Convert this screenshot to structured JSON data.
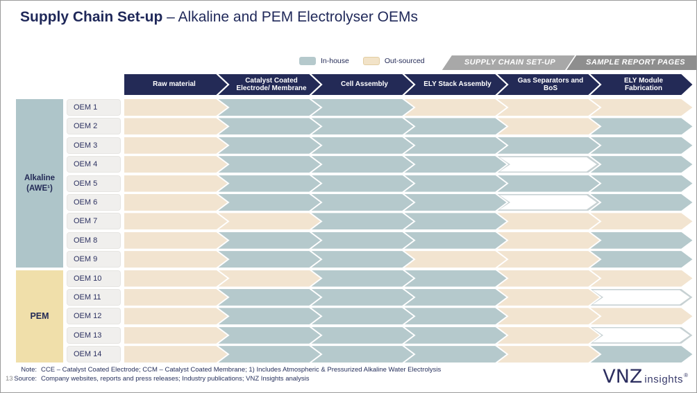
{
  "slide": {
    "title_bold": "Supply Chain Set-up",
    "title_rest": " – Alkaline and PEM Electrolyser OEMs",
    "page_number": "13"
  },
  "legend": {
    "in_house_label": "In-house",
    "out_sourced_label": "Out-sourced"
  },
  "nav_tabs": {
    "tab1": "SUPPLY CHAIN SET-UP",
    "tab2": "SAMPLE REPORT PAGES"
  },
  "colors": {
    "in_house": "#b5c9cc",
    "out_sourced": "#f2e4d0",
    "blank": "#ffffff",
    "blank_border": "#c7d1d3",
    "header_navy": "#232a56",
    "alkaline_block": "#aec5c9",
    "pem_block": "#f0dfaa",
    "tab_light": "#a8a8a8",
    "tab_dark": "#8e8e8e"
  },
  "chart_data": {
    "type": "table",
    "legend": [
      "In-house",
      "Out-sourced"
    ],
    "columns": [
      "Raw material",
      "Catalyst Coated Electrode/ Membrane",
      "Cell Assembly",
      "ELY Stack Assembly",
      "Gas Separators and BoS",
      "ELY Module Fabrication"
    ],
    "groups": [
      {
        "type": "alkaline",
        "label_lines": [
          "Alkaline",
          "(AWE¹)"
        ],
        "row_span": 9
      },
      {
        "type": "pem",
        "label_lines": [
          "PEM"
        ],
        "row_span": 5
      }
    ],
    "rows": [
      {
        "label": "OEM 1",
        "group": "alkaline",
        "cells": [
          "out",
          "in",
          "in",
          "out",
          "out",
          "out"
        ]
      },
      {
        "label": "OEM 2",
        "group": "alkaline",
        "cells": [
          "out",
          "in",
          "in",
          "in",
          "out",
          "in"
        ]
      },
      {
        "label": "OEM 3",
        "group": "alkaline",
        "cells": [
          "out",
          "in",
          "in",
          "in",
          "in",
          "in"
        ]
      },
      {
        "label": "OEM 4",
        "group": "alkaline",
        "cells": [
          "out",
          "in",
          "in",
          "in",
          "blank",
          "in"
        ]
      },
      {
        "label": "OEM 5",
        "group": "alkaline",
        "cells": [
          "out",
          "in",
          "in",
          "in",
          "in",
          "in"
        ]
      },
      {
        "label": "OEM 6",
        "group": "alkaline",
        "cells": [
          "out",
          "in",
          "in",
          "in",
          "blank",
          "in"
        ]
      },
      {
        "label": "OEM 7",
        "group": "alkaline",
        "cells": [
          "out",
          "out",
          "in",
          "in",
          "out",
          "out"
        ]
      },
      {
        "label": "OEM 8",
        "group": "alkaline",
        "cells": [
          "out",
          "in",
          "in",
          "in",
          "out",
          "in"
        ]
      },
      {
        "label": "OEM 9",
        "group": "alkaline",
        "cells": [
          "out",
          "in",
          "in",
          "out",
          "out",
          "in"
        ]
      },
      {
        "label": "OEM 10",
        "group": "pem",
        "cells": [
          "out",
          "out",
          "in",
          "in",
          "out",
          "out"
        ]
      },
      {
        "label": "OEM 11",
        "group": "pem",
        "cells": [
          "out",
          "in",
          "in",
          "in",
          "out",
          "blank"
        ]
      },
      {
        "label": "OEM 12",
        "group": "pem",
        "cells": [
          "out",
          "in",
          "in",
          "in",
          "out",
          "out"
        ]
      },
      {
        "label": "OEM 13",
        "group": "pem",
        "cells": [
          "out",
          "in",
          "in",
          "in",
          "out",
          "blank"
        ]
      },
      {
        "label": "OEM 14",
        "group": "pem",
        "cells": [
          "out",
          "in",
          "in",
          "in",
          "out",
          "in"
        ]
      }
    ]
  },
  "footer": {
    "note_label": "Note:",
    "note_text": "CCE – Catalyst Coated Electrode; CCM – Catalyst Coated Membrane; 1) Includes Atmospheric & Pressurized Alkaline Water Electrolysis",
    "source_label": "Source:",
    "source_text": "Company websites, reports and press releases; Industry publications; VNZ Insights analysis"
  },
  "logo": {
    "brand": "VNZ",
    "word": "insights",
    "reg": "®"
  }
}
